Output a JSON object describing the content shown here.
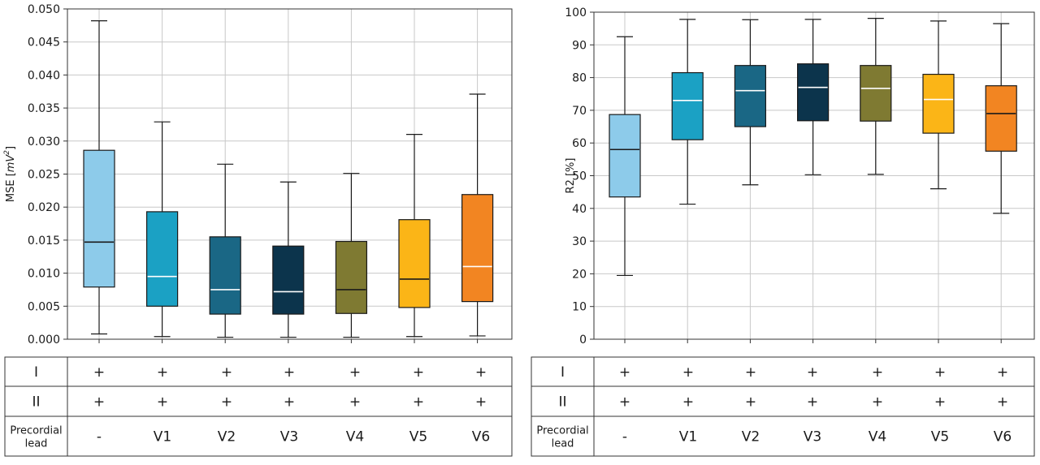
{
  "chart_data": [
    {
      "type": "box",
      "ylabel": "MSE [mV²]",
      "ylabel_base": "MSE [",
      "ylabel_unit": "mV",
      "ylabel_sup": "2",
      "ylabel_close": "]",
      "ylim": [
        0,
        0.05
      ],
      "yticks": [
        "0.000",
        "0.005",
        "0.010",
        "0.015",
        "0.020",
        "0.025",
        "0.030",
        "0.035",
        "0.040",
        "0.045",
        "0.050"
      ],
      "grid": true,
      "boxes": [
        {
          "lower_whisker": 0.0008,
          "q1": 0.0079,
          "median": 0.0147,
          "q3": 0.0286,
          "upper_whisker": 0.0482,
          "color": "#8dcbea",
          "median_color": "#1a1a1a"
        },
        {
          "lower_whisker": 0.0004,
          "q1": 0.005,
          "median": 0.0095,
          "q3": 0.0193,
          "upper_whisker": 0.0329,
          "color": "#1ba1c4",
          "median_color": "#ffffff"
        },
        {
          "lower_whisker": 0.0003,
          "q1": 0.0038,
          "median": 0.0075,
          "q3": 0.0155,
          "upper_whisker": 0.0265,
          "color": "#1a6785",
          "median_color": "#ffffff"
        },
        {
          "lower_whisker": 0.0003,
          "q1": 0.0038,
          "median": 0.0072,
          "q3": 0.0141,
          "upper_whisker": 0.0238,
          "color": "#0c344c",
          "median_color": "#ffffff"
        },
        {
          "lower_whisker": 0.0003,
          "q1": 0.0039,
          "median": 0.0075,
          "q3": 0.0148,
          "upper_whisker": 0.0251,
          "color": "#7f7a32",
          "median_color": "#1a1a1a"
        },
        {
          "lower_whisker": 0.0004,
          "q1": 0.0048,
          "median": 0.0091,
          "q3": 0.0181,
          "upper_whisker": 0.031,
          "color": "#fbb517",
          "median_color": "#1a1a1a"
        },
        {
          "lower_whisker": 0.0005,
          "q1": 0.0057,
          "median": 0.011,
          "q3": 0.0219,
          "upper_whisker": 0.0371,
          "color": "#f28522",
          "median_color": "#ffffff"
        }
      ]
    },
    {
      "type": "box",
      "ylabel": "R2 [%]",
      "ylim": [
        0,
        100
      ],
      "yticks": [
        "0",
        "10",
        "20",
        "30",
        "40",
        "50",
        "60",
        "70",
        "80",
        "90",
        "100"
      ],
      "grid": true,
      "boxes": [
        {
          "lower_whisker": 19.5,
          "q1": 43.5,
          "median": 58.0,
          "q3": 68.7,
          "upper_whisker": 92.5,
          "color": "#8dcbea",
          "median_color": "#1a1a1a"
        },
        {
          "lower_whisker": 41.3,
          "q1": 61.0,
          "median": 73.0,
          "q3": 81.5,
          "upper_whisker": 97.8,
          "color": "#1ba1c4",
          "median_color": "#ffffff"
        },
        {
          "lower_whisker": 47.2,
          "q1": 65.0,
          "median": 76.0,
          "q3": 83.7,
          "upper_whisker": 97.7,
          "color": "#1a6785",
          "median_color": "#ffffff"
        },
        {
          "lower_whisker": 50.3,
          "q1": 66.8,
          "median": 77.0,
          "q3": 84.2,
          "upper_whisker": 97.8,
          "color": "#0c344c",
          "median_color": "#ffffff"
        },
        {
          "lower_whisker": 50.4,
          "q1": 66.7,
          "median": 76.7,
          "q3": 83.7,
          "upper_whisker": 98.1,
          "color": "#7f7a32",
          "median_color": "#ffffff"
        },
        {
          "lower_whisker": 46.0,
          "q1": 63.0,
          "median": 73.3,
          "q3": 81.0,
          "upper_whisker": 97.3,
          "color": "#fbb517",
          "median_color": "#ffffff"
        },
        {
          "lower_whisker": 38.5,
          "q1": 57.5,
          "median": 69.0,
          "q3": 77.5,
          "upper_whisker": 96.5,
          "color": "#f28522",
          "median_color": "#1a1a1a"
        }
      ]
    }
  ],
  "lead_table": {
    "row_labels": [
      "I",
      "II",
      "Precordial lead"
    ],
    "row_label_lines": [
      [
        "I"
      ],
      [
        "II"
      ],
      [
        "Precordial",
        "lead"
      ]
    ],
    "rows": [
      [
        "+",
        "+",
        "+",
        "+",
        "+",
        "+",
        "+"
      ],
      [
        "+",
        "+",
        "+",
        "+",
        "+",
        "+",
        "+"
      ],
      [
        "-",
        "V1",
        "V2",
        "V3",
        "V4",
        "V5",
        "V6"
      ]
    ]
  }
}
